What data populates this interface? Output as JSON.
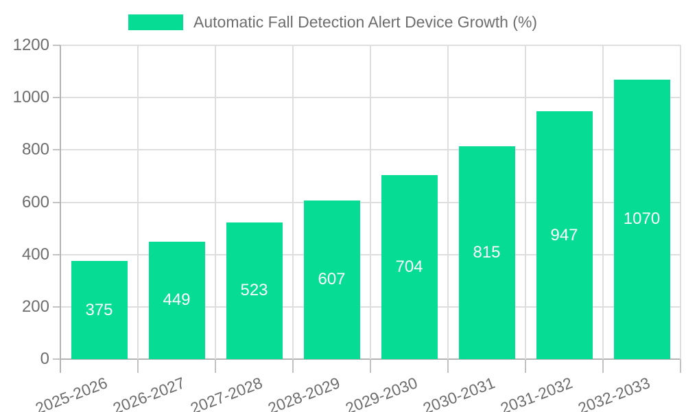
{
  "legend": {
    "label": "Automatic Fall Detection Alert Device Growth (%)"
  },
  "chart_data": {
    "type": "bar",
    "title": "Automatic Fall Detection Alert Device Growth (%)",
    "categories": [
      "2025-2026",
      "2026-2027",
      "2027-2028",
      "2028-2029",
      "2029-2030",
      "2030-2031",
      "2031-2032",
      "2032-2033"
    ],
    "values": [
      375,
      449,
      523,
      607,
      704,
      815,
      947,
      1070
    ],
    "xlabel": "",
    "ylabel": "",
    "ylim": [
      0,
      1200
    ],
    "yticks": [
      0,
      200,
      400,
      600,
      800,
      1000,
      1200
    ],
    "grid": true,
    "legend_position": "top",
    "bar_color": "#06DC93",
    "bar_label_color": "#ffffff",
    "tick_text_color": "#6d6d6d",
    "gridline_color": "#dedede",
    "axis_line_color": "#b4b4b4"
  }
}
